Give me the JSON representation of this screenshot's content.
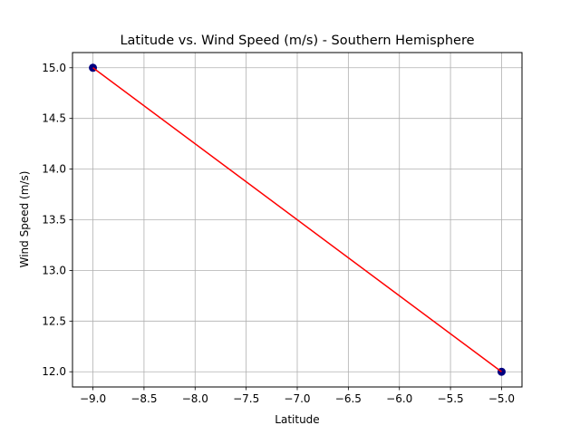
{
  "chart_data": {
    "type": "line",
    "title": "Latitude vs. Wind Speed (m/s) - Southern Hemisphere",
    "xlabel": "Latitude",
    "ylabel": "Wind Speed (m/s)",
    "xlim": [
      -9.2,
      -4.8
    ],
    "ylim": [
      11.85,
      15.15
    ],
    "x_ticks": [
      -9.0,
      -8.5,
      -8.0,
      -7.5,
      -7.0,
      -6.5,
      -6.0,
      -5.5,
      -5.0
    ],
    "x_tick_labels": [
      "−9.0",
      "−8.5",
      "−8.0",
      "−7.5",
      "−7.0",
      "−6.5",
      "−6.0",
      "−5.5",
      "−5.0"
    ],
    "y_ticks": [
      12.0,
      12.5,
      13.0,
      13.5,
      14.0,
      14.5,
      15.0
    ],
    "y_tick_labels": [
      "12.0",
      "12.5",
      "13.0",
      "13.5",
      "14.0",
      "14.5",
      "15.0"
    ],
    "grid": true,
    "scatter": {
      "x": [
        -9.0,
        -5.0
      ],
      "y": [
        15.0,
        12.0
      ],
      "color": "#000080"
    },
    "regression_line": {
      "x": [
        -9.0,
        -5.0
      ],
      "y": [
        15.0,
        12.0
      ],
      "color": "#ff0000"
    },
    "colors": {
      "grid": "#b0b0b0",
      "axes": "#000000",
      "background": "#ffffff"
    }
  }
}
